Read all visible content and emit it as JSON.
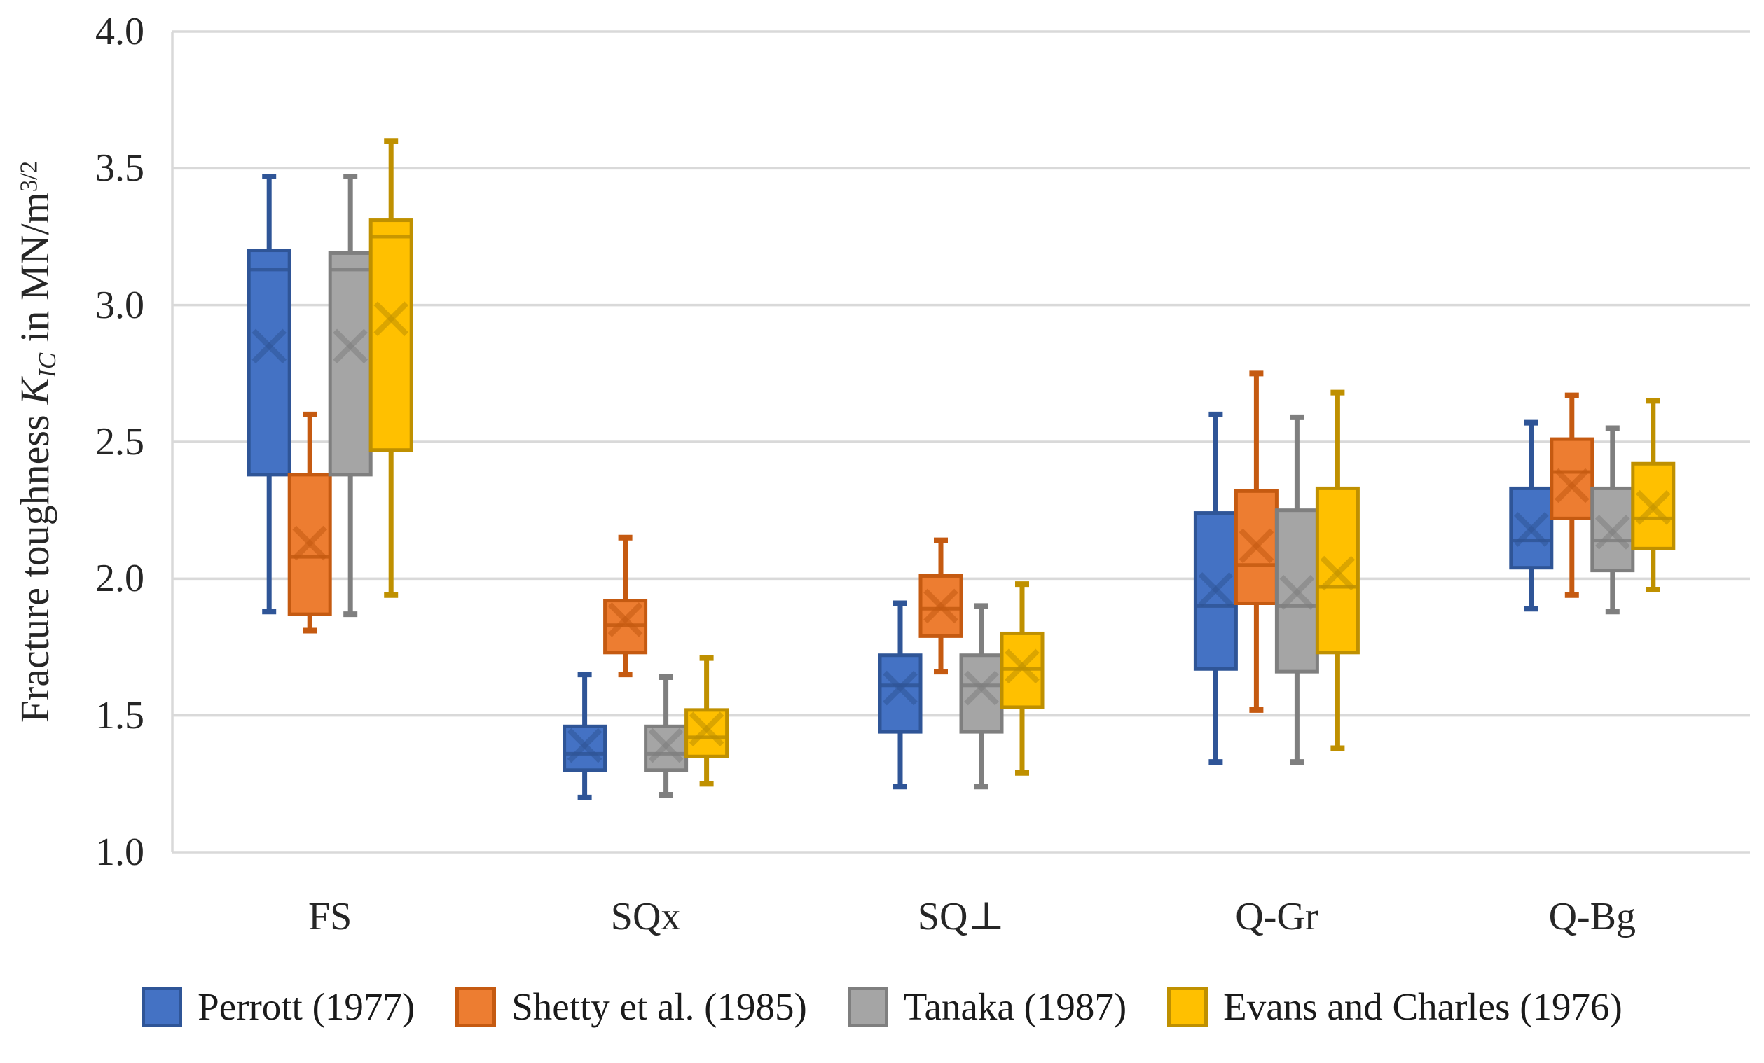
{
  "chart_data": {
    "type": "boxplot",
    "title": "",
    "ylabel": "Fracture toughness K_IC in MN/m^(3/2)",
    "ylabel_parts": {
      "prefix": "Fracture toughness ",
      "symbol": "K",
      "symbol_sub": "IC",
      "middle": " in MN/m",
      "exponent": "3/2"
    },
    "y_axis": {
      "min": 1.0,
      "max": 4.0,
      "step": 0.5,
      "ticks": [
        {
          "value": 4.0,
          "label": "4.0"
        },
        {
          "value": 3.5,
          "label": "3.5"
        },
        {
          "value": 3.0,
          "label": "3.0"
        },
        {
          "value": 2.5,
          "label": "2.5"
        },
        {
          "value": 2.0,
          "label": "2.0"
        },
        {
          "value": 1.5,
          "label": "1.5"
        },
        {
          "value": 1.0,
          "label": "1.0"
        }
      ]
    },
    "grid_on": true,
    "grid_color": "#D9D9D9",
    "legend_position": "bottom",
    "categories": [
      "FS",
      "SQx",
      "SQ⊥",
      "Q-Gr",
      "Q-Bg"
    ],
    "series": [
      {
        "key": "perrott",
        "name": "Perrott (1977)",
        "fill": "#4472C4",
        "stroke": "#2F5597",
        "values": [
          {
            "category": "FS",
            "min": 1.88,
            "q1": 2.38,
            "median": 3.13,
            "q3": 3.2,
            "max": 3.47,
            "mean": 2.85
          },
          {
            "category": "SQx",
            "min": 1.2,
            "q1": 1.3,
            "median": 1.36,
            "q3": 1.46,
            "max": 1.65,
            "mean": 1.39
          },
          {
            "category": "SQ⊥",
            "min": 1.24,
            "q1": 1.44,
            "median": 1.61,
            "q3": 1.72,
            "max": 1.91,
            "mean": 1.6
          },
          {
            "category": "Q-Gr",
            "min": 1.33,
            "q1": 1.67,
            "median": 1.9,
            "q3": 2.24,
            "max": 2.6,
            "mean": 1.96
          },
          {
            "category": "Q-Bg",
            "min": 1.89,
            "q1": 2.04,
            "median": 2.14,
            "q3": 2.33,
            "max": 2.57,
            "mean": 2.18
          }
        ]
      },
      {
        "key": "shetty",
        "name": "Shetty et al. (1985)",
        "fill": "#ED7D31",
        "stroke": "#C55A11",
        "values": [
          {
            "category": "FS",
            "min": 1.81,
            "q1": 1.87,
            "median": 2.08,
            "q3": 2.38,
            "max": 2.6,
            "mean": 2.13
          },
          {
            "category": "SQx",
            "min": 1.65,
            "q1": 1.73,
            "median": 1.83,
            "q3": 1.92,
            "max": 2.15,
            "mean": 1.85
          },
          {
            "category": "SQ⊥",
            "min": 1.66,
            "q1": 1.79,
            "median": 1.89,
            "q3": 2.01,
            "max": 2.14,
            "mean": 1.9
          },
          {
            "category": "Q-Gr",
            "min": 1.52,
            "q1": 1.91,
            "median": 2.05,
            "q3": 2.32,
            "max": 2.75,
            "mean": 2.12
          },
          {
            "category": "Q-Bg",
            "min": 1.94,
            "q1": 2.22,
            "median": 2.39,
            "q3": 2.51,
            "max": 2.67,
            "mean": 2.34
          }
        ]
      },
      {
        "key": "tanaka",
        "name": "Tanaka (1987)",
        "fill": "#A5A5A5",
        "stroke": "#7F7F7F",
        "values": [
          {
            "category": "FS",
            "min": 1.87,
            "q1": 2.38,
            "median": 3.13,
            "q3": 3.19,
            "max": 3.47,
            "mean": 2.85
          },
          {
            "category": "SQx",
            "min": 1.21,
            "q1": 1.3,
            "median": 1.36,
            "q3": 1.46,
            "max": 1.64,
            "mean": 1.39
          },
          {
            "category": "SQ⊥",
            "min": 1.24,
            "q1": 1.44,
            "median": 1.61,
            "q3": 1.72,
            "max": 1.9,
            "mean": 1.6
          },
          {
            "category": "Q-Gr",
            "min": 1.33,
            "q1": 1.66,
            "median": 1.9,
            "q3": 2.25,
            "max": 2.59,
            "mean": 1.95
          },
          {
            "category": "Q-Bg",
            "min": 1.88,
            "q1": 2.03,
            "median": 2.14,
            "q3": 2.33,
            "max": 2.55,
            "mean": 2.17
          }
        ]
      },
      {
        "key": "evans",
        "name": "Evans and Charles (1976)",
        "fill": "#FFC000",
        "stroke": "#BF9000",
        "values": [
          {
            "category": "FS",
            "min": 1.94,
            "q1": 2.47,
            "median": 3.25,
            "q3": 3.31,
            "max": 3.6,
            "mean": 2.95
          },
          {
            "category": "SQx",
            "min": 1.25,
            "q1": 1.35,
            "median": 1.42,
            "q3": 1.52,
            "max": 1.71,
            "mean": 1.45
          },
          {
            "category": "SQ⊥",
            "min": 1.29,
            "q1": 1.53,
            "median": 1.67,
            "q3": 1.8,
            "max": 1.98,
            "mean": 1.68
          },
          {
            "category": "Q-Gr",
            "min": 1.38,
            "q1": 1.73,
            "median": 1.97,
            "q3": 2.33,
            "max": 2.68,
            "mean": 2.02
          },
          {
            "category": "Q-Bg",
            "min": 1.96,
            "q1": 2.11,
            "median": 2.22,
            "q3": 2.42,
            "max": 2.65,
            "mean": 2.26
          }
        ]
      }
    ]
  }
}
